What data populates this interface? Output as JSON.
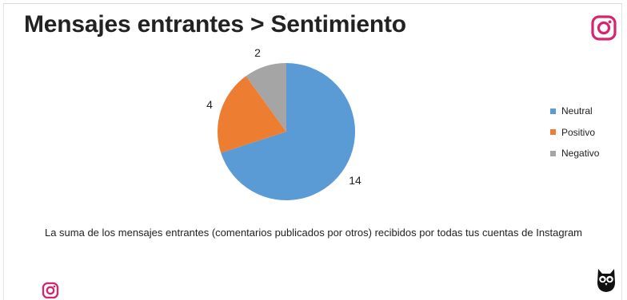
{
  "page": {
    "title": "Mensajes entrantes > Sentimiento",
    "description": "La suma de los mensajes entrantes (comentarios publicados por otros) recibidos por todas tus cuentas de Instagram"
  },
  "icons": {
    "top_right": "instagram-icon",
    "bottom_left": "instagram-icon",
    "bottom_right": "hootsuite-owl-icon"
  },
  "colors": {
    "instagram": "#d6246e",
    "neutral": "#5b9bd5",
    "positive": "#ed7d31",
    "negative": "#a5a5a5"
  },
  "chart_data": {
    "type": "pie",
    "categories": [
      "Neutral",
      "Positivo",
      "Negativo"
    ],
    "values": [
      14,
      4,
      2
    ],
    "colors": [
      "#5b9bd5",
      "#ed7d31",
      "#a5a5a5"
    ],
    "data_labels": [
      "14",
      "4",
      "2"
    ],
    "legend_position": "right",
    "start_angle": "12 o'clock",
    "direction": "clockwise"
  }
}
